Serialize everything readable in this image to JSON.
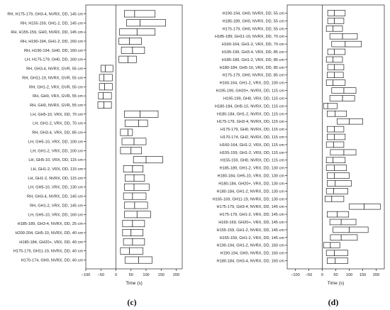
{
  "chart_data": [
    {
      "type": "boxplot",
      "caption": "(c)",
      "xlabel": "Time (s)",
      "xlim": [
        -100,
        220
      ],
      "xticks": [
        -100,
        -50,
        0,
        50,
        100,
        150,
        200
      ],
      "reference_line_x": 0,
      "categories": [
        "RH, H175-179, GH3-4, NVRX, DD, 145 cm",
        "RH, H155-159, GH1-2, DD, 145 cm",
        "RH, H155-159, GH0, NVRX, DD, 145 cm",
        "RH, H190-194, GH1-2, DD, 160 cm",
        "RH, H190-194, GH0, DD, 160 cm",
        "LH, H175-179, GH0, DD, 160 cm",
        "RH, GH3-4, NVRX, GVR, 55 cm",
        "RH, GH11-19, NVRX, GVR, 55 cm",
        "RH, GH1-2, VRX, GVR, 55 cm",
        "RH, GH0, VRX, GVR, 55 cm",
        "RH, GH0, NVRX, GVR, 55 cm",
        "LH, GH5-10, VRX, DD, 70 cm",
        "LH, GH1-2, VRX, DD, 70 cm",
        "RH, GH3-4, VRX, DD, 85 cm",
        "LH, GH5-10, VRX, DD, 100 cm",
        "LH, GH1-2, VRX, DD, 100 cm",
        "LH, GH5-10, VRX, DD, 115 cm",
        "LH, GH1-2, VRX, DD, 115 cm",
        "LH, GH1-2, NVRX, DD, 115 cm",
        "LH, GH5-10, VRX, DD, 130 cm",
        "RH, GH3-4, NVRX, DD, 145 cm",
        "RH, GH1-2, VRX, DD, 145 cm",
        "LH, GH5-10, VRX, DD, 160 cm",
        "H185-189, GH3-4, NVRX, DD, 25 cm",
        "H200-204, GH5-10, NVRX, DD, 40 cm",
        "H180-184, GH20+, VRX, DD, 40 cm",
        "H175-179, GH11-19, NVRX, DD, 40 cm",
        "H170-174, GH0, NVRX, DD, 40 cm"
      ],
      "boxes": [
        {
          "q1": 28,
          "median": 62,
          "q3": 130
        },
        {
          "q1": 35,
          "median": 80,
          "q3": 165
        },
        {
          "q1": 12,
          "median": 70,
          "q3": 130
        },
        {
          "q1": 10,
          "median": 45,
          "q3": 85
        },
        {
          "q1": 18,
          "median": 55,
          "q3": 95
        },
        {
          "q1": 10,
          "median": 40,
          "q3": 68
        },
        {
          "q1": -50,
          "median": -35,
          "q3": -10
        },
        {
          "q1": -55,
          "median": -40,
          "q3": -12
        },
        {
          "q1": -55,
          "median": -38,
          "q3": -12
        },
        {
          "q1": -58,
          "median": -42,
          "q3": -15
        },
        {
          "q1": -60,
          "median": -40,
          "q3": -15
        },
        {
          "q1": 28,
          "median": 80,
          "q3": 140
        },
        {
          "q1": 30,
          "median": 75,
          "q3": 105
        },
        {
          "q1": 15,
          "median": 40,
          "q3": 55
        },
        {
          "q1": 20,
          "median": 60,
          "q3": 100
        },
        {
          "q1": 15,
          "median": 50,
          "q3": 85
        },
        {
          "q1": 58,
          "median": 100,
          "q3": 155
        },
        {
          "q1": 25,
          "median": 55,
          "q3": 90
        },
        {
          "q1": 30,
          "median": 60,
          "q3": 95
        },
        {
          "q1": 28,
          "median": 60,
          "q3": 110
        },
        {
          "q1": 25,
          "median": 55,
          "q3": 100
        },
        {
          "q1": 28,
          "median": 62,
          "q3": 105
        },
        {
          "q1": 28,
          "median": 70,
          "q3": 115
        },
        {
          "q1": 22,
          "median": 55,
          "q3": 95
        },
        {
          "q1": 22,
          "median": 50,
          "q3": 90
        },
        {
          "q1": 25,
          "median": 55,
          "q3": 95
        },
        {
          "q1": 15,
          "median": 45,
          "q3": 90
        },
        {
          "q1": 30,
          "median": 75,
          "q3": 120
        }
      ]
    },
    {
      "type": "boxplot",
      "caption": "(d)",
      "xlabel": "Time (s)",
      "xlim": [
        -130,
        230
      ],
      "xticks": [
        -100,
        -50,
        0,
        50,
        100,
        150,
        200
      ],
      "reference_line_x": 0,
      "categories": [
        "H190-194, GH0, NVRX, DD, 55 cm",
        "H185-189, GH0, NVRX, DD, 55 cm",
        "H175-179, GH0, NVRX, DD, 55 cm",
        "H185-189, GH11-19, NVRX, DD, 70 cm",
        "H160-164, GH1-2, VRX, DD, 70 cm",
        "H195-199, GH3-4, VRX, DD, 85 cm",
        "H185-189, GH1-2, VRX, DD, 85 cm",
        "H180-184, GH5-10, VRX, DD, 85 cm",
        "H175-179, GH0, NVRX, DD, 85 cm",
        "H160-164, GH1-2, VRX, DD, 100 cm",
        "H195-199, GH20+, NVRX, DD, 115 cm",
        "H195-199, GH0, VRX, DD, 115 cm",
        "H180-184, GH5-10, NVRX, DD, 115 cm",
        "H180-184, GH1-2, NVRX, DD, 115 cm",
        "H175-179, GH3-4, NVRX, DD, 115 cm",
        "H175-179, GH0, NVRX, DD, 115 cm",
        "H170-174, GH2, NVRX, DD, 115 cm",
        "H160-164, GH1-2, VRX, DD, 115 cm",
        "H155-159, GH1-2, VRX, DD, 115 cm",
        "H155-159, GH0, NVRX, DD, 115 cm",
        "H185-189, GH1-2, VRX, DD, 130 cm",
        "H180-184, GH5-10, VRX, DD, 130 cm",
        "H180-184, GH20+, VRX, DD, 130 cm",
        "H180-184, GH1-2, NVRX, DD, 130 cm",
        "H165-169, GH11-19, NVRX, DD, 130 cm",
        "H175-179, GH3-4, NVRX, DD, 145 cm",
        "H175-179, GH1-2, VRX, DD, 145 cm",
        "H165-169, GH20+, VRX, DD, 145 cm",
        "H155-159, GH1-2, NVRX, DD, 145 cm",
        "H155-159, GH1-2, VRX, DD, 145 cm",
        "H190-194, GH1-2, NVRX, DD, 160 cm",
        "H190-194, GH0, NVRX, DD, 160 cm",
        "H180-184, GH3-4, NVRX, DD, 160 cm"
      ],
      "boxes": [
        {
          "q1": 20,
          "median": 45,
          "q3": 85
        },
        {
          "q1": 20,
          "median": 45,
          "q3": 80
        },
        {
          "q1": 15,
          "median": 40,
          "q3": 75
        },
        {
          "q1": 28,
          "median": 75,
          "q3": 130
        },
        {
          "q1": 35,
          "median": 85,
          "q3": 145
        },
        {
          "q1": 20,
          "median": 45,
          "q3": 85
        },
        {
          "q1": 15,
          "median": 40,
          "q3": 75
        },
        {
          "q1": 20,
          "median": 45,
          "q3": 80
        },
        {
          "q1": 18,
          "median": 45,
          "q3": 78
        },
        {
          "q1": 15,
          "median": 40,
          "q3": 85
        },
        {
          "q1": 35,
          "median": 80,
          "q3": 125
        },
        {
          "q1": 28,
          "median": 75,
          "q3": 120
        },
        {
          "q1": 5,
          "median": 20,
          "q3": 55
        },
        {
          "q1": 18,
          "median": 48,
          "q3": 90
        },
        {
          "q1": 55,
          "median": 100,
          "q3": 150
        },
        {
          "q1": 18,
          "median": 45,
          "q3": 80
        },
        {
          "q1": 18,
          "median": 45,
          "q3": 85
        },
        {
          "q1": 15,
          "median": 42,
          "q3": 80
        },
        {
          "q1": 30,
          "median": 80,
          "q3": 125
        },
        {
          "q1": 15,
          "median": 40,
          "q3": 85
        },
        {
          "q1": 15,
          "median": 45,
          "q3": 90
        },
        {
          "q1": 18,
          "median": 45,
          "q3": 100
        },
        {
          "q1": 18,
          "median": 48,
          "q3": 108
        },
        {
          "q1": 15,
          "median": 42,
          "q3": 95
        },
        {
          "q1": 10,
          "median": 35,
          "q3": 80
        },
        {
          "q1": 100,
          "median": 155,
          "q3": 215
        },
        {
          "q1": 18,
          "median": 55,
          "q3": 98
        },
        {
          "q1": 28,
          "median": 70,
          "q3": 125
        },
        {
          "q1": 40,
          "median": 100,
          "q3": 170
        },
        {
          "q1": 30,
          "median": 70,
          "q3": 130
        },
        {
          "q1": 5,
          "median": 30,
          "q3": 65
        },
        {
          "q1": 15,
          "median": 45,
          "q3": 95
        },
        {
          "q1": 18,
          "median": 48,
          "q3": 95
        }
      ]
    }
  ]
}
